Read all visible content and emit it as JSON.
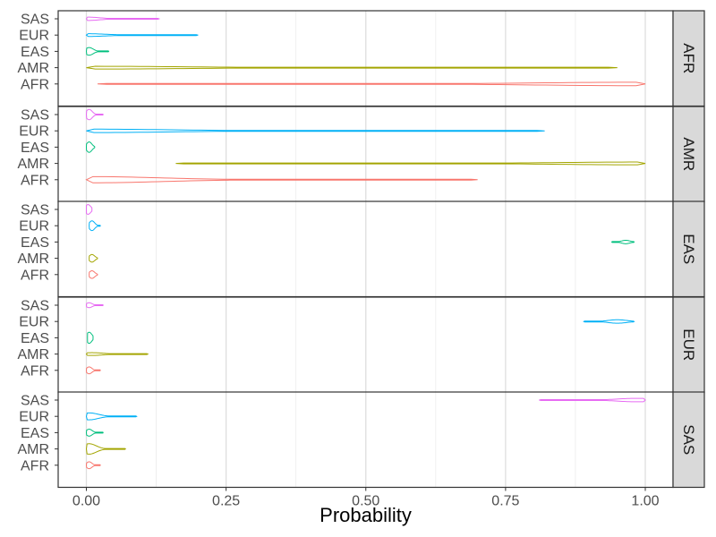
{
  "chart_data": {
    "type": "violin",
    "xlabel": "Probability",
    "xlim": [
      0,
      1.05
    ],
    "x_ticks": [
      0,
      0.25,
      0.5,
      0.75,
      1.0
    ],
    "x_tick_labels": [
      "0.00",
      "0.25",
      "0.50",
      "0.75",
      "1.00"
    ],
    "categories": [
      "SAS",
      "EUR",
      "EAS",
      "AMR",
      "AFR"
    ],
    "colors": {
      "AFR": "#F8766D",
      "AMR": "#A3A500",
      "EAS": "#00BF7D",
      "EUR": "#00B0F6",
      "SAS": "#E76BF3"
    },
    "panel_background": "#ffffff",
    "strip_background": "#d9d9d9",
    "grid": true,
    "facets": [
      {
        "label": "AFR",
        "violins": [
          {
            "group": "SAS",
            "min": 0.0,
            "max": 0.13,
            "mode": 0.0,
            "width": 0.25
          },
          {
            "group": "EUR",
            "min": 0.0,
            "max": 0.2,
            "mode": 0.0,
            "width": 0.2
          },
          {
            "group": "EAS",
            "min": 0.0,
            "max": 0.04,
            "mode": 0.005,
            "width": 0.55
          },
          {
            "group": "AMR",
            "min": 0.0,
            "max": 0.95,
            "mode": 0.01,
            "width": 0.2
          },
          {
            "group": "AFR",
            "min": 0.02,
            "max": 1.0,
            "mode": 0.985,
            "width": 0.25
          }
        ]
      },
      {
        "label": "AMR",
        "violins": [
          {
            "group": "SAS",
            "min": 0.0,
            "max": 0.03,
            "mode": 0.005,
            "width": 0.75
          },
          {
            "group": "EUR",
            "min": 0.0,
            "max": 0.82,
            "mode": 0.005,
            "width": 0.25
          },
          {
            "group": "EAS",
            "min": 0.0,
            "max": 0.015,
            "mode": 0.005,
            "width": 0.75
          },
          {
            "group": "AMR",
            "min": 0.16,
            "max": 1.0,
            "mode": 0.99,
            "width": 0.2
          },
          {
            "group": "AFR",
            "min": 0.0,
            "max": 0.7,
            "mode": 0.005,
            "width": 0.45
          }
        ]
      },
      {
        "label": "EAS",
        "violins": [
          {
            "group": "SAS",
            "min": 0.0,
            "max": 0.01,
            "mode": 0.003,
            "width": 0.7
          },
          {
            "group": "EUR",
            "min": 0.005,
            "max": 0.025,
            "mode": 0.01,
            "width": 0.7
          },
          {
            "group": "EAS",
            "min": 0.94,
            "max": 0.98,
            "mode": 0.965,
            "width": 0.25
          },
          {
            "group": "AMR",
            "min": 0.005,
            "max": 0.02,
            "mode": 0.01,
            "width": 0.55
          },
          {
            "group": "AFR",
            "min": 0.005,
            "max": 0.02,
            "mode": 0.01,
            "width": 0.55
          }
        ]
      },
      {
        "label": "EUR",
        "violins": [
          {
            "group": "SAS",
            "min": 0.0,
            "max": 0.03,
            "mode": 0.005,
            "width": 0.35
          },
          {
            "group": "EUR",
            "min": 0.89,
            "max": 0.98,
            "mode": 0.95,
            "width": 0.25
          },
          {
            "group": "EAS",
            "min": 0.002,
            "max": 0.012,
            "mode": 0.005,
            "width": 0.8
          },
          {
            "group": "AMR",
            "min": 0.0,
            "max": 0.11,
            "mode": 0.01,
            "width": 0.2
          },
          {
            "group": "AFR",
            "min": 0.0,
            "max": 0.025,
            "mode": 0.005,
            "width": 0.5
          }
        ]
      },
      {
        "label": "SAS",
        "violins": [
          {
            "group": "SAS",
            "min": 0.81,
            "max": 1.0,
            "mode": 0.985,
            "width": 0.25
          },
          {
            "group": "EUR",
            "min": 0.0,
            "max": 0.09,
            "mode": 0.005,
            "width": 0.5
          },
          {
            "group": "EAS",
            "min": 0.0,
            "max": 0.03,
            "mode": 0.005,
            "width": 0.5
          },
          {
            "group": "AMR",
            "min": 0.0,
            "max": 0.07,
            "mode": 0.005,
            "width": 0.75
          },
          {
            "group": "AFR",
            "min": 0.0,
            "max": 0.025,
            "mode": 0.005,
            "width": 0.5
          }
        ]
      }
    ]
  }
}
